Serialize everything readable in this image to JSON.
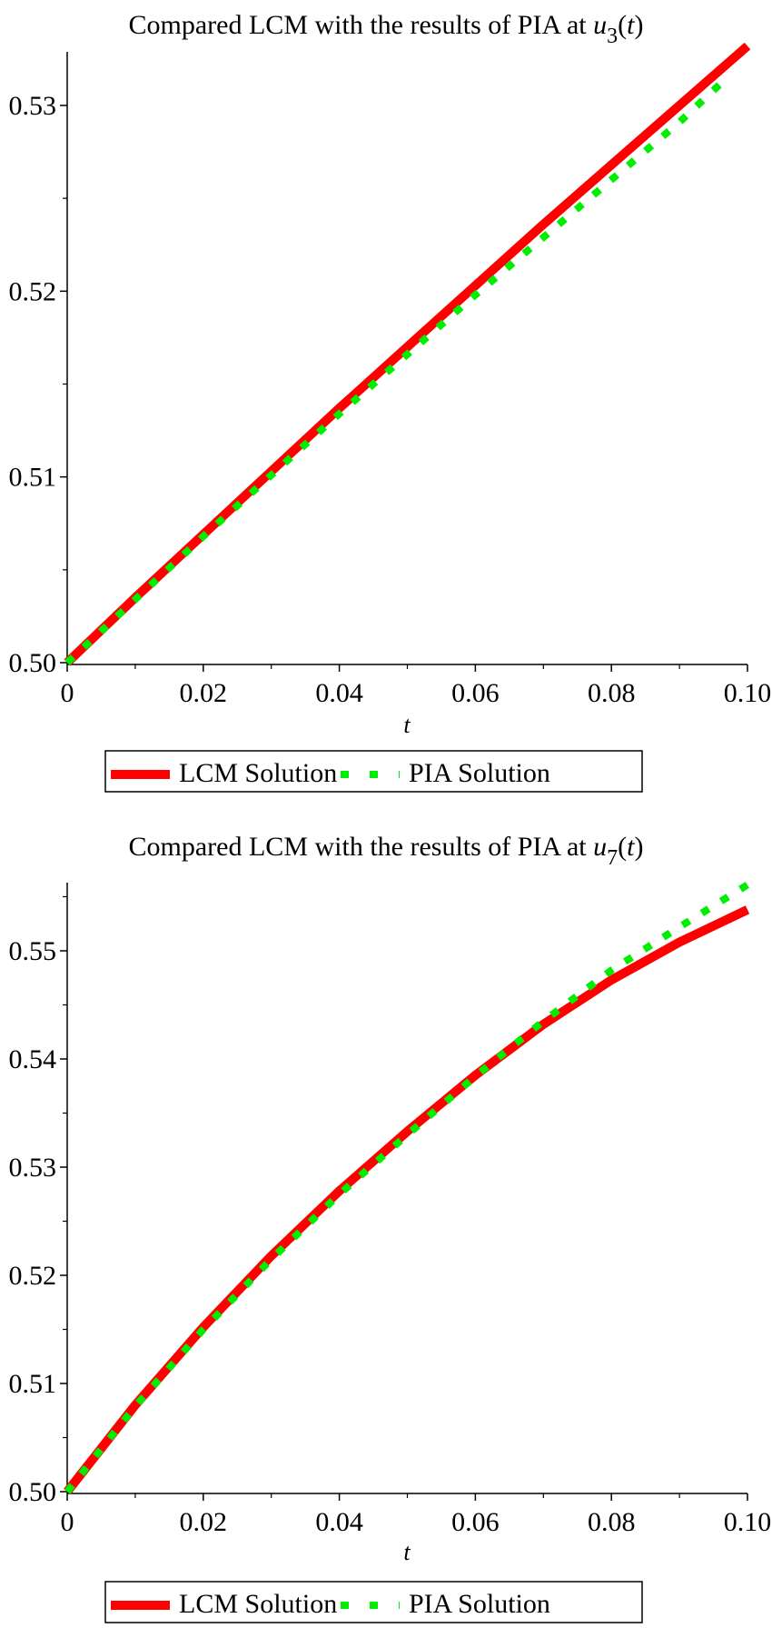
{
  "chart_data": [
    {
      "type": "line",
      "title": "Compared LCM with the results of PIA at u3(t)",
      "title_parts": {
        "prefix": "Compared LCM with the results of PIA at ",
        "var": "u",
        "subscript": "3",
        "arg": "(t)"
      },
      "xlabel": "t",
      "ylabel": "",
      "xlim": [
        0,
        0.1
      ],
      "ylim": [
        0.5,
        0.5333
      ],
      "xticks": [
        0,
        0.02,
        0.04,
        0.06,
        0.08,
        0.1
      ],
      "xtick_labels": [
        "0",
        "0.02",
        "0.04",
        "0.06",
        "0.08",
        "0.10"
      ],
      "yticks": [
        0.5,
        0.51,
        0.52,
        0.53
      ],
      "ytick_labels": [
        "0.50",
        "0.51",
        "0.52",
        "0.53"
      ],
      "grid": false,
      "legend_position": "bottom",
      "series": [
        {
          "name": "LCM Solution",
          "color": "#ff0000",
          "style": "solid",
          "x": [
            0,
            0.01,
            0.02,
            0.03,
            0.04,
            0.05,
            0.06,
            0.07,
            0.08,
            0.09,
            0.1
          ],
          "y": [
            0.5,
            0.5035,
            0.5069,
            0.5103,
            0.5137,
            0.517,
            0.5203,
            0.5236,
            0.5268,
            0.53,
            0.5332
          ]
        },
        {
          "name": "PIA Solution",
          "color": "#00ee00",
          "style": "dotted",
          "x": [
            0,
            0.01,
            0.02,
            0.03,
            0.04,
            0.05,
            0.06,
            0.07,
            0.08,
            0.09,
            0.097
          ],
          "y": [
            0.5,
            0.5034,
            0.5068,
            0.5101,
            0.5134,
            0.5166,
            0.5198,
            0.5229,
            0.526,
            0.5291,
            0.5315
          ]
        }
      ]
    },
    {
      "type": "line",
      "title": "Compared LCM with the results of PIA at u7(t)",
      "title_parts": {
        "prefix": "Compared LCM with the results of PIA at ",
        "var": "u",
        "subscript": "7",
        "arg": "(t)"
      },
      "xlabel": "t",
      "ylabel": "",
      "xlim": [
        0,
        0.1
      ],
      "ylim": [
        0.5,
        0.5565
      ],
      "xticks": [
        0,
        0.02,
        0.04,
        0.06,
        0.08,
        0.1
      ],
      "xtick_labels": [
        "0",
        "0.02",
        "0.04",
        "0.06",
        "0.08",
        "0.10"
      ],
      "yticks": [
        0.5,
        0.51,
        0.52,
        0.53,
        0.54,
        0.55
      ],
      "ytick_labels": [
        "0.50",
        "0.51",
        "0.52",
        "0.53",
        "0.54",
        "0.55"
      ],
      "grid": false,
      "legend_position": "bottom",
      "series": [
        {
          "name": "LCM Solution",
          "color": "#ff0000",
          "style": "solid",
          "x": [
            0,
            0.01,
            0.02,
            0.03,
            0.04,
            0.05,
            0.06,
            0.07,
            0.08,
            0.09,
            0.1
          ],
          "y": [
            0.5,
            0.508,
            0.5152,
            0.5218,
            0.5278,
            0.5333,
            0.5385,
            0.5432,
            0.5473,
            0.5508,
            0.5538
          ]
        },
        {
          "name": "PIA Solution",
          "color": "#00ee00",
          "style": "dotted",
          "x": [
            0,
            0.01,
            0.02,
            0.03,
            0.04,
            0.05,
            0.06,
            0.07,
            0.08,
            0.09,
            0.1
          ],
          "y": [
            0.5,
            0.5079,
            0.515,
            0.5215,
            0.5275,
            0.533,
            0.5384,
            0.5435,
            0.5482,
            0.5522,
            0.5561
          ]
        }
      ]
    }
  ],
  "legend": {
    "items": [
      "LCM Solution",
      "PIA Solution"
    ]
  }
}
